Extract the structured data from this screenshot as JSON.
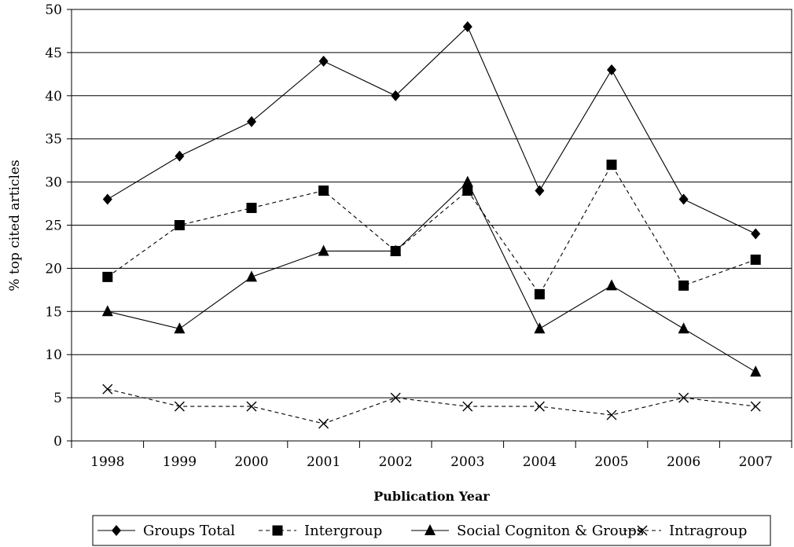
{
  "chart_data": {
    "type": "line",
    "xlabel": "Publication Year",
    "ylabel": "% top cited articles",
    "ylim": [
      0,
      50
    ],
    "yticks": [
      "0",
      "5",
      "10",
      "15",
      "20",
      "25",
      "30",
      "35",
      "40",
      "45",
      "50"
    ],
    "categories": [
      "1998",
      "1999",
      "2000",
      "2001",
      "2002",
      "2003",
      "2004",
      "2005",
      "2006",
      "2007"
    ],
    "grid": "horizontal",
    "legend_position": "bottom",
    "series": [
      {
        "name": "Groups Total",
        "marker": "diamond",
        "line": "solid",
        "values": [
          28,
          33,
          37,
          44,
          40,
          48,
          29,
          43,
          28,
          24
        ]
      },
      {
        "name": "Intergroup",
        "marker": "square",
        "line": "dashed",
        "values": [
          19,
          25,
          27,
          29,
          22,
          29,
          17,
          32,
          18,
          21
        ]
      },
      {
        "name": "Social Cogniton & Groups",
        "marker": "triangle",
        "line": "solid",
        "values": [
          15,
          13,
          19,
          22,
          22,
          30,
          13,
          18,
          13,
          8
        ]
      },
      {
        "name": "Intragroup",
        "marker": "x",
        "line": "dashed",
        "values": [
          6,
          4,
          4,
          2,
          5,
          4,
          4,
          3,
          5,
          4
        ]
      }
    ]
  }
}
